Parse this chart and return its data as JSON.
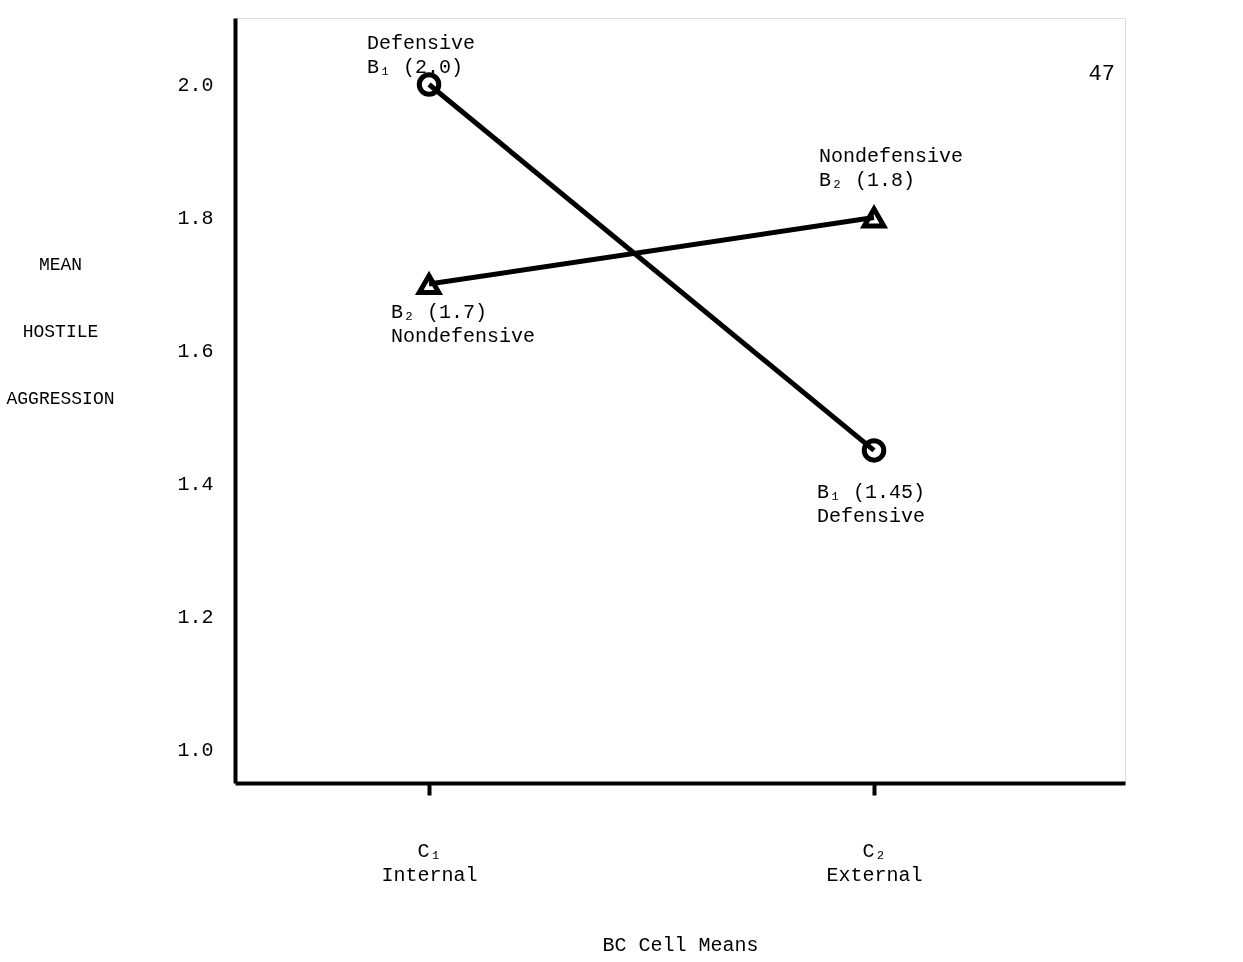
{
  "chart_data": {
    "type": "line",
    "categories": [
      "C₁\nInternal",
      "C₂\nExternal"
    ],
    "series": [
      {
        "color": "#000000",
        "marker": "circle",
        "values": [
          2.0,
          1.45
        ]
      },
      {
        "color": "#000000",
        "marker": "triangle",
        "values": [
          1.7,
          1.8
        ]
      }
    ],
    "ylim": [
      0.95,
      2.1
    ],
    "yticks": [
      {
        "value": 1.0,
        "label": "1.0"
      },
      {
        "value": 1.2,
        "label": "1.2"
      },
      {
        "value": 1.4,
        "label": "1.4"
      },
      {
        "value": 1.6,
        "label": "1.6"
      },
      {
        "value": 1.8,
        "label": "1.8"
      },
      {
        "value": 2.0,
        "label": "2.0"
      }
    ],
    "ylabel": "MEAN HOSTILE AGGRESSION",
    "xlabel": "BC Cell Means",
    "grid": false,
    "annotations": [
      {
        "text": "Defensive\nB₁ (2.0)",
        "x": "C₁\nInternal",
        "y": 2.0
      },
      {
        "text": "B₂ (1.7)\nNondefensive",
        "x": "C₁\nInternal",
        "y": 1.7
      },
      {
        "text": "Nondefensive\nB₂ (1.8)",
        "x": "C₂\nExternal",
        "y": 1.8
      },
      {
        "text": "B₁ (1.45)\nDefensive",
        "x": "C₂\nExternal",
        "y": 1.45
      },
      "47"
    ]
  }
}
